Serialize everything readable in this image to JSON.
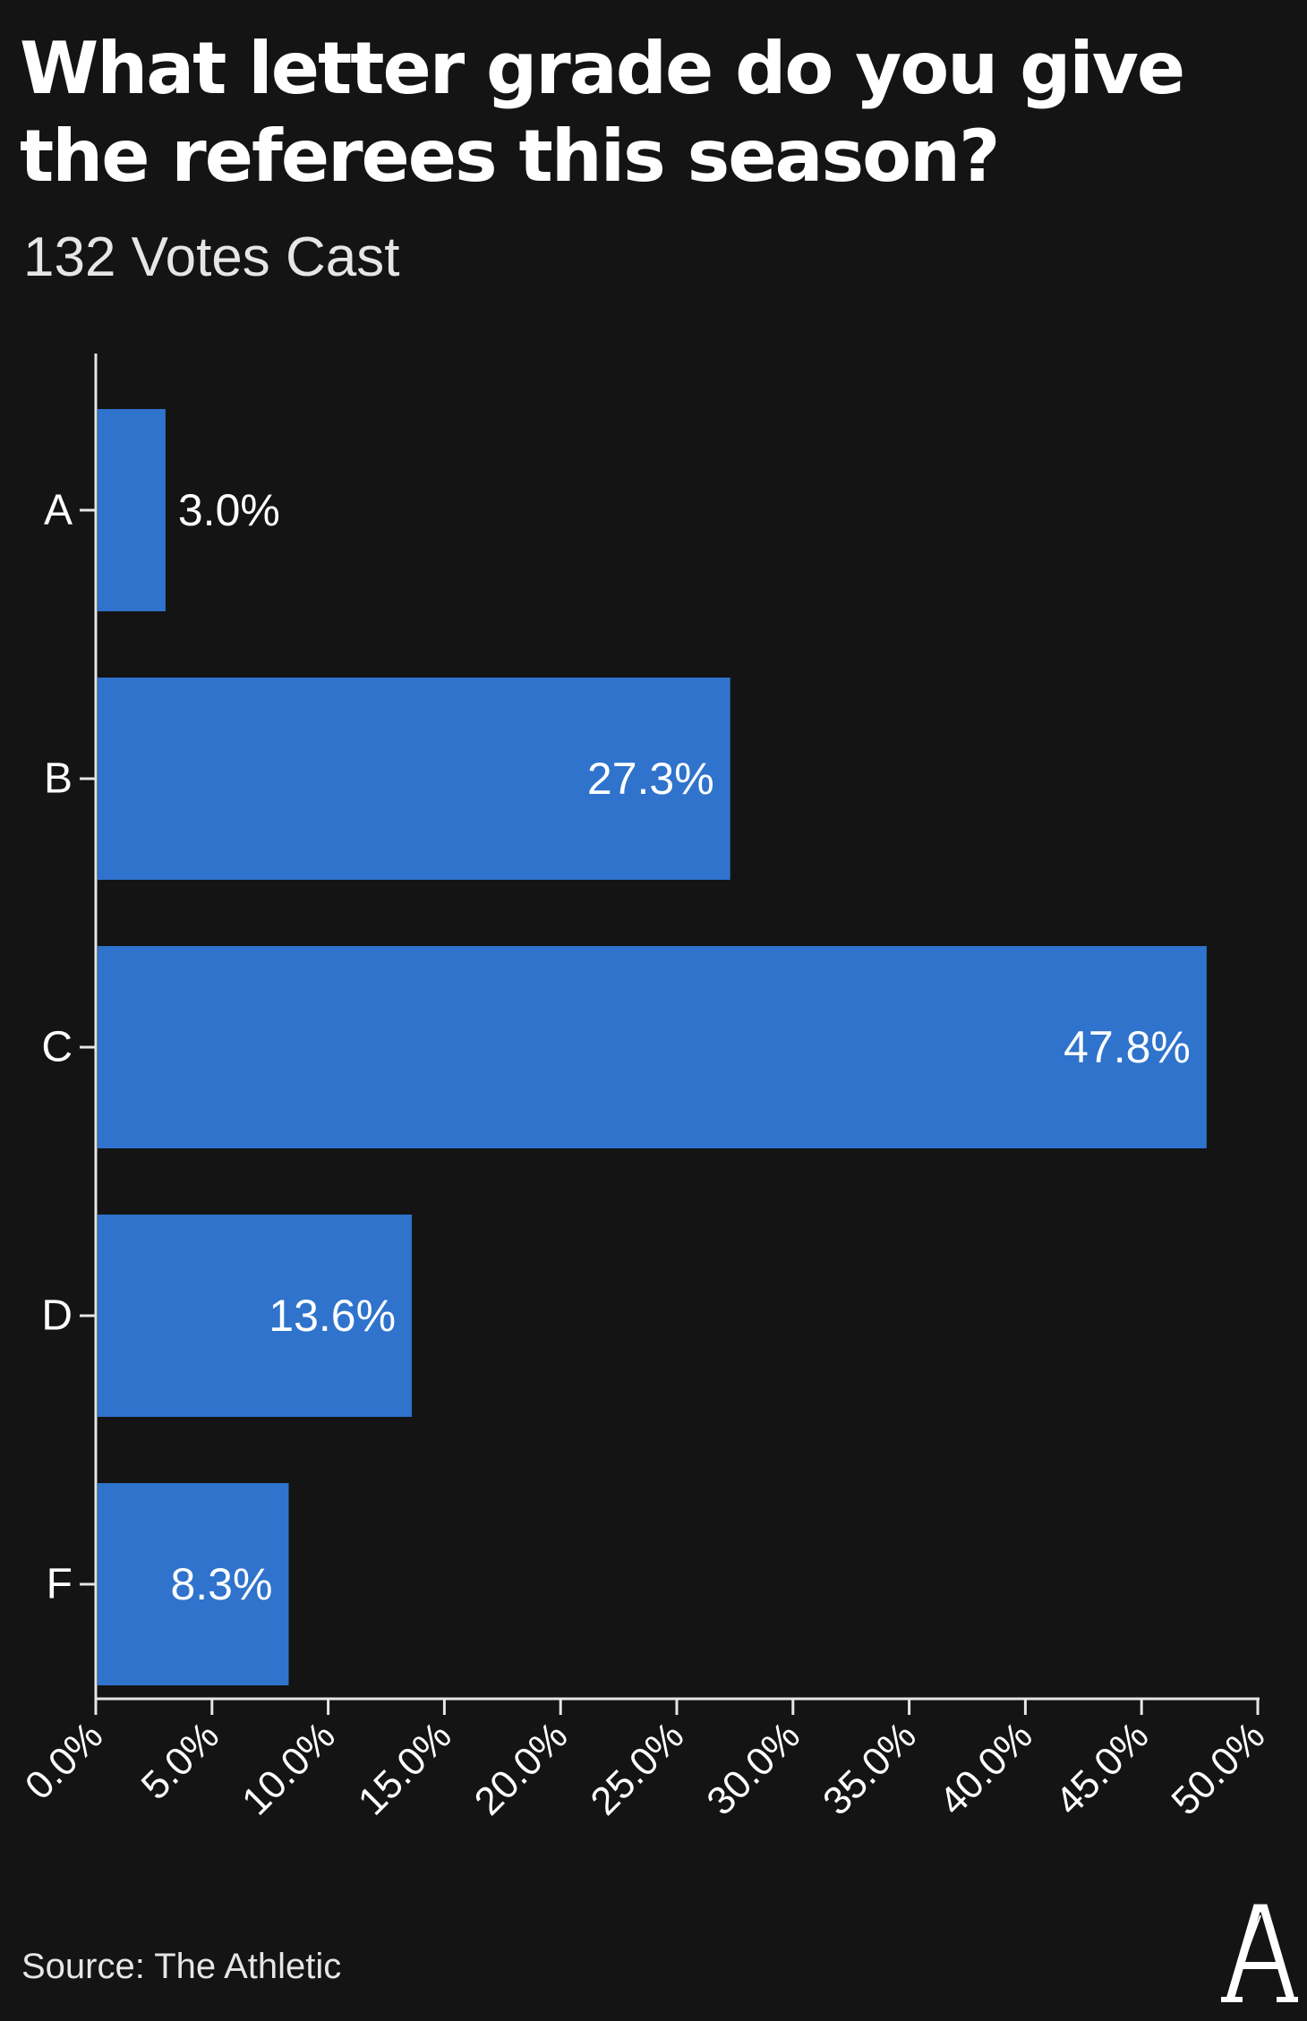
{
  "header": {
    "title": "What letter grade do you give the referees this season?",
    "subtitle": "132 Votes Cast"
  },
  "footer": {
    "source": "Source: The Athletic",
    "logo_letter": "A"
  },
  "colors": {
    "background": "#141414",
    "bar": "#2f73cc",
    "axis": "#e6e6e6",
    "text": "#ffffff"
  },
  "chart_data": {
    "type": "bar",
    "orientation": "horizontal",
    "categories": [
      "A",
      "B",
      "C",
      "D",
      "F"
    ],
    "values": [
      3.0,
      27.3,
      47.8,
      13.6,
      8.3
    ],
    "value_labels": [
      "3.0%",
      "27.3%",
      "47.8%",
      "13.6%",
      "8.3%"
    ],
    "xlim": [
      0,
      50
    ],
    "x_ticks": [
      0,
      5,
      10,
      15,
      20,
      25,
      30,
      35,
      40,
      45,
      50
    ],
    "x_tick_labels": [
      "0.0%",
      "5.0%",
      "10.0%",
      "15.0%",
      "20.0%",
      "25.0%",
      "30.0%",
      "35.0%",
      "40.0%",
      "45.0%",
      "50.0%"
    ],
    "grid": false,
    "legend": "none"
  }
}
